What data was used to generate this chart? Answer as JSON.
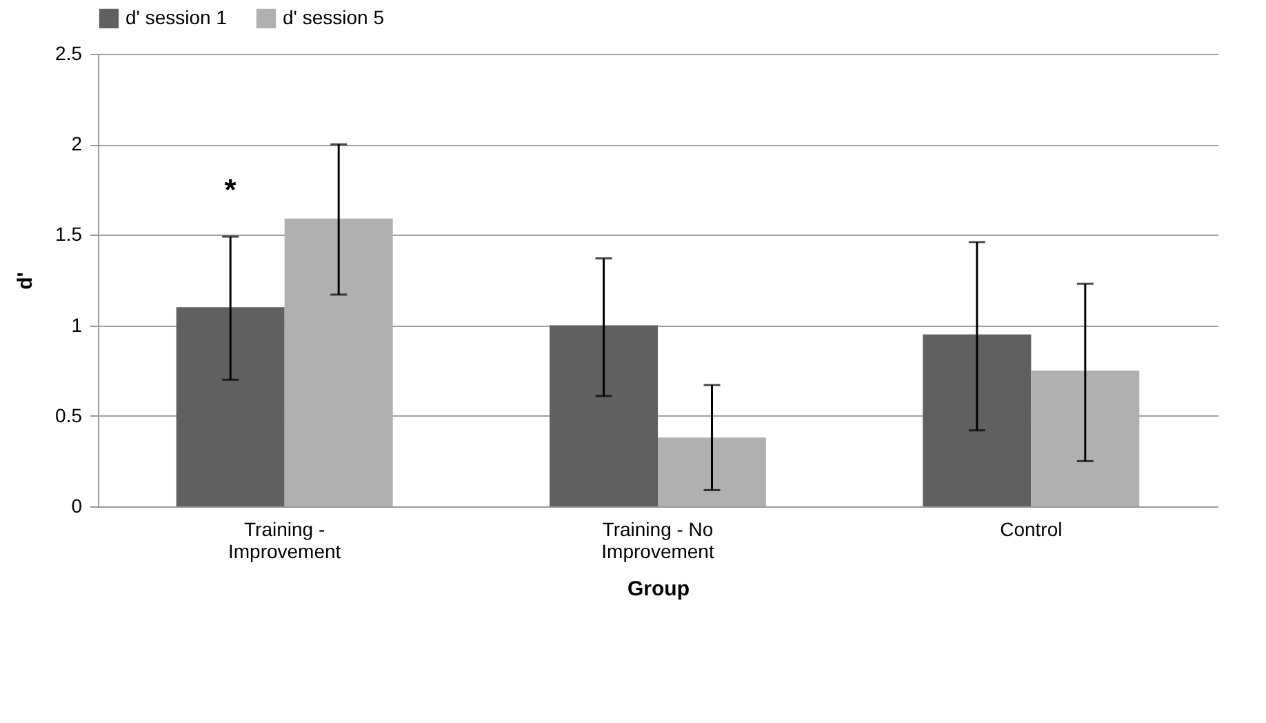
{
  "chart_data": {
    "type": "bar",
    "xlabel": "Group",
    "ylabel": "d'",
    "categories": [
      "Training - Improvement",
      "Training - No Improvement",
      "Control"
    ],
    "series": [
      {
        "name": "d' session 1",
        "color": "#606060",
        "values": [
          1.1,
          1.0,
          0.95
        ],
        "errors": [
          [
            0.7,
            1.49
          ],
          [
            0.61,
            1.37
          ],
          [
            0.42,
            1.46
          ]
        ]
      },
      {
        "name": "d' session 5",
        "color": "#b0b0b0",
        "values": [
          1.59,
          0.38,
          0.75
        ],
        "errors": [
          [
            1.17,
            2.0
          ],
          [
            0.09,
            0.67
          ],
          [
            0.25,
            1.23
          ]
        ]
      }
    ],
    "ylim": [
      0,
      2.5
    ],
    "yticks": [
      0,
      0.5,
      1,
      1.5,
      2,
      2.5
    ],
    "grid": "y",
    "legend": "top",
    "annotations": [
      "*"
    ]
  }
}
